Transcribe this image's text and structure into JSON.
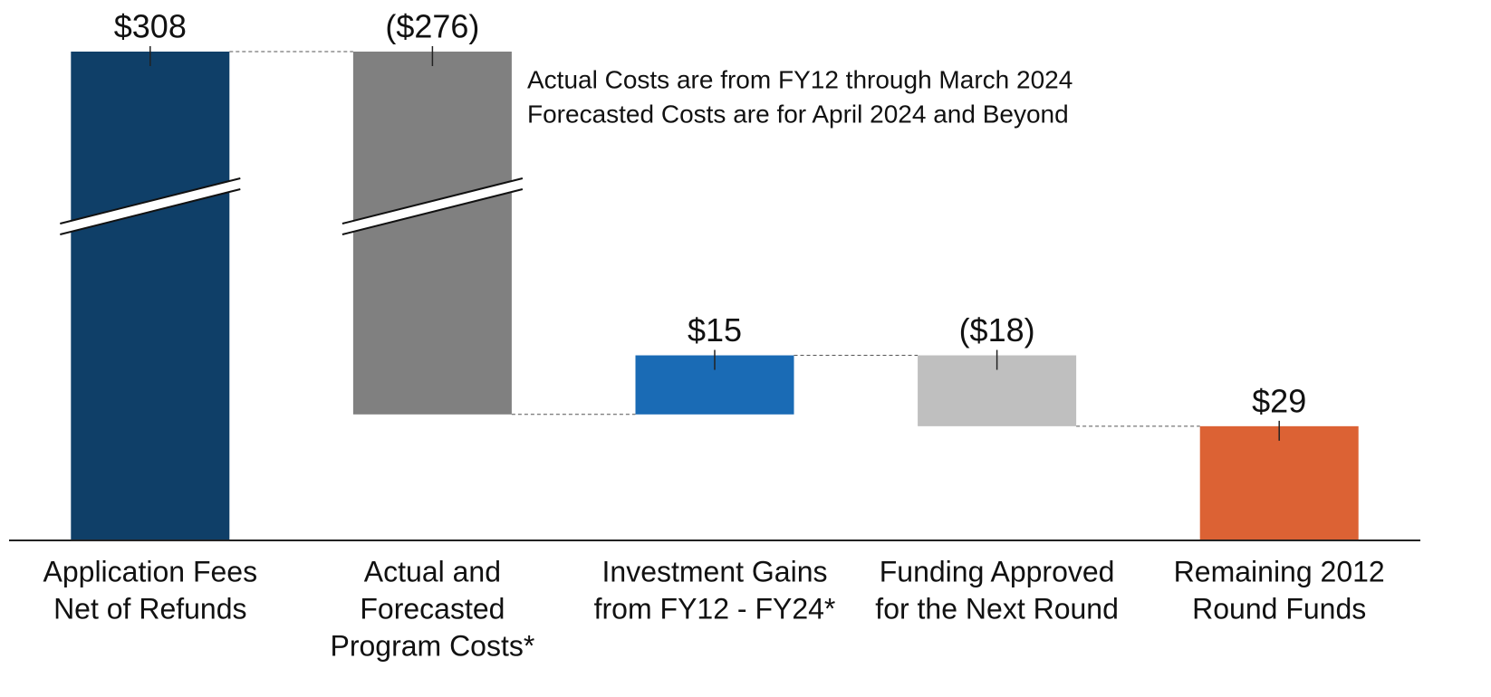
{
  "chart_data": {
    "type": "waterfall",
    "categories": [
      [
        "Application Fees",
        "Net of Refunds"
      ],
      [
        "Actual and",
        "Forecasted",
        "Program Costs*"
      ],
      [
        "Investment Gains",
        "from FY12 - FY24*"
      ],
      [
        "Funding Approved",
        "for the Next Round"
      ],
      [
        "Remaining 2012",
        "Round Funds"
      ]
    ],
    "values": [
      308,
      -276,
      15,
      -18,
      29
    ],
    "value_labels": [
      "$308",
      "($276)",
      "$15",
      "($18)",
      "$29"
    ],
    "colors": [
      "#0f3f68",
      "#808080",
      "#1a6bb5",
      "#bfbfbf",
      "#dc6234"
    ],
    "last_is_total": true,
    "axis_break": true,
    "annotations": [
      "Actual Costs are from FY12 through March 2024",
      "Forecasted Costs are for April 2024 and Beyond"
    ]
  }
}
